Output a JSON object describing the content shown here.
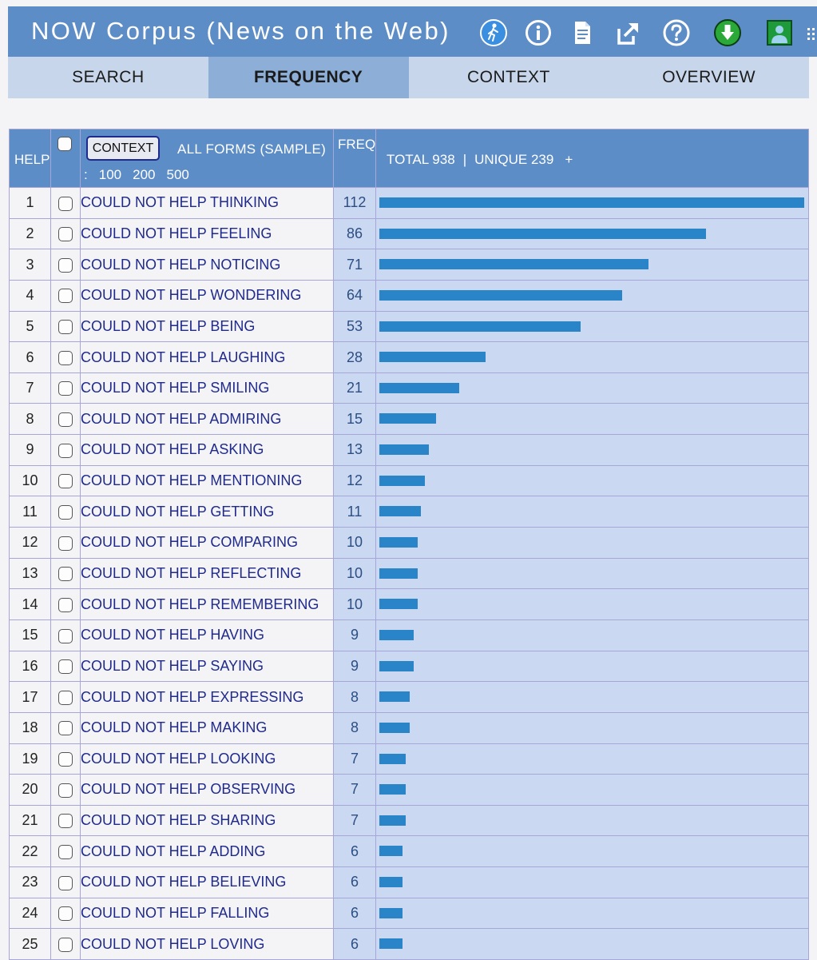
{
  "app": {
    "title": "NOW Corpus (News on the Web)"
  },
  "toolbar_icons": [
    "tour-icon",
    "info-icon",
    "document-icon",
    "external-link-icon",
    "help-icon",
    "download-icon",
    "user-profile-icon",
    "grid-menu-icon"
  ],
  "tabs": [
    {
      "label": "SEARCH",
      "active": false
    },
    {
      "label": "FREQUENCY",
      "active": true
    },
    {
      "label": "CONTEXT",
      "active": false
    },
    {
      "label": "OVERVIEW",
      "active": false
    }
  ],
  "table": {
    "help_label": "HELP",
    "context_button": "CONTEXT",
    "all_forms": "ALL FORMS  (SAMPLE)",
    "limits_prefix": ":",
    "limits": [
      "100",
      "200",
      "500"
    ],
    "freq_label": "FREQ",
    "total": "TOTAL 938",
    "separator": "|",
    "unique": "UNIQUE 239",
    "plus": "+"
  },
  "rows": [
    {
      "n": "1",
      "word": "COULD NOT HELP THINKING",
      "freq": 112
    },
    {
      "n": "2",
      "word": "COULD NOT HELP FEELING",
      "freq": 86
    },
    {
      "n": "3",
      "word": "COULD NOT HELP NOTICING",
      "freq": 71
    },
    {
      "n": "4",
      "word": "COULD NOT HELP WONDERING",
      "freq": 64
    },
    {
      "n": "5",
      "word": "COULD NOT HELP BEING",
      "freq": 53
    },
    {
      "n": "6",
      "word": "COULD NOT HELP LAUGHING",
      "freq": 28
    },
    {
      "n": "7",
      "word": "COULD NOT HELP SMILING",
      "freq": 21
    },
    {
      "n": "8",
      "word": "COULD NOT HELP ADMIRING",
      "freq": 15
    },
    {
      "n": "9",
      "word": "COULD NOT HELP ASKING",
      "freq": 13
    },
    {
      "n": "10",
      "word": "COULD NOT HELP MENTIONING",
      "freq": 12
    },
    {
      "n": "11",
      "word": "COULD NOT HELP GETTING",
      "freq": 11
    },
    {
      "n": "12",
      "word": "COULD NOT HELP COMPARING",
      "freq": 10
    },
    {
      "n": "13",
      "word": "COULD NOT HELP REFLECTING",
      "freq": 10
    },
    {
      "n": "14",
      "word": "COULD NOT HELP REMEMBERING",
      "freq": 10
    },
    {
      "n": "15",
      "word": "COULD NOT HELP HAVING",
      "freq": 9
    },
    {
      "n": "16",
      "word": "COULD NOT HELP SAYING",
      "freq": 9
    },
    {
      "n": "17",
      "word": "COULD NOT HELP EXPRESSING",
      "freq": 8
    },
    {
      "n": "18",
      "word": "COULD NOT HELP MAKING",
      "freq": 8
    },
    {
      "n": "19",
      "word": "COULD NOT HELP LOOKING",
      "freq": 7
    },
    {
      "n": "20",
      "word": "COULD NOT HELP OBSERVING",
      "freq": 7
    },
    {
      "n": "21",
      "word": "COULD NOT HELP SHARING",
      "freq": 7
    },
    {
      "n": "22",
      "word": "COULD NOT HELP ADDING",
      "freq": 6
    },
    {
      "n": "23",
      "word": "COULD NOT HELP BELIEVING",
      "freq": 6
    },
    {
      "n": "24",
      "word": "COULD NOT HELP FALLING",
      "freq": 6
    },
    {
      "n": "25",
      "word": "COULD NOT HELP LOVING",
      "freq": 6
    }
  ],
  "colors": {
    "header": "#5d8dc6",
    "tabs": "#c7d6ea",
    "tab_active": "#8caed7",
    "row_tint": "#cbd8f2",
    "bar": "#2a85c8",
    "link": "#1f2a8c"
  }
}
